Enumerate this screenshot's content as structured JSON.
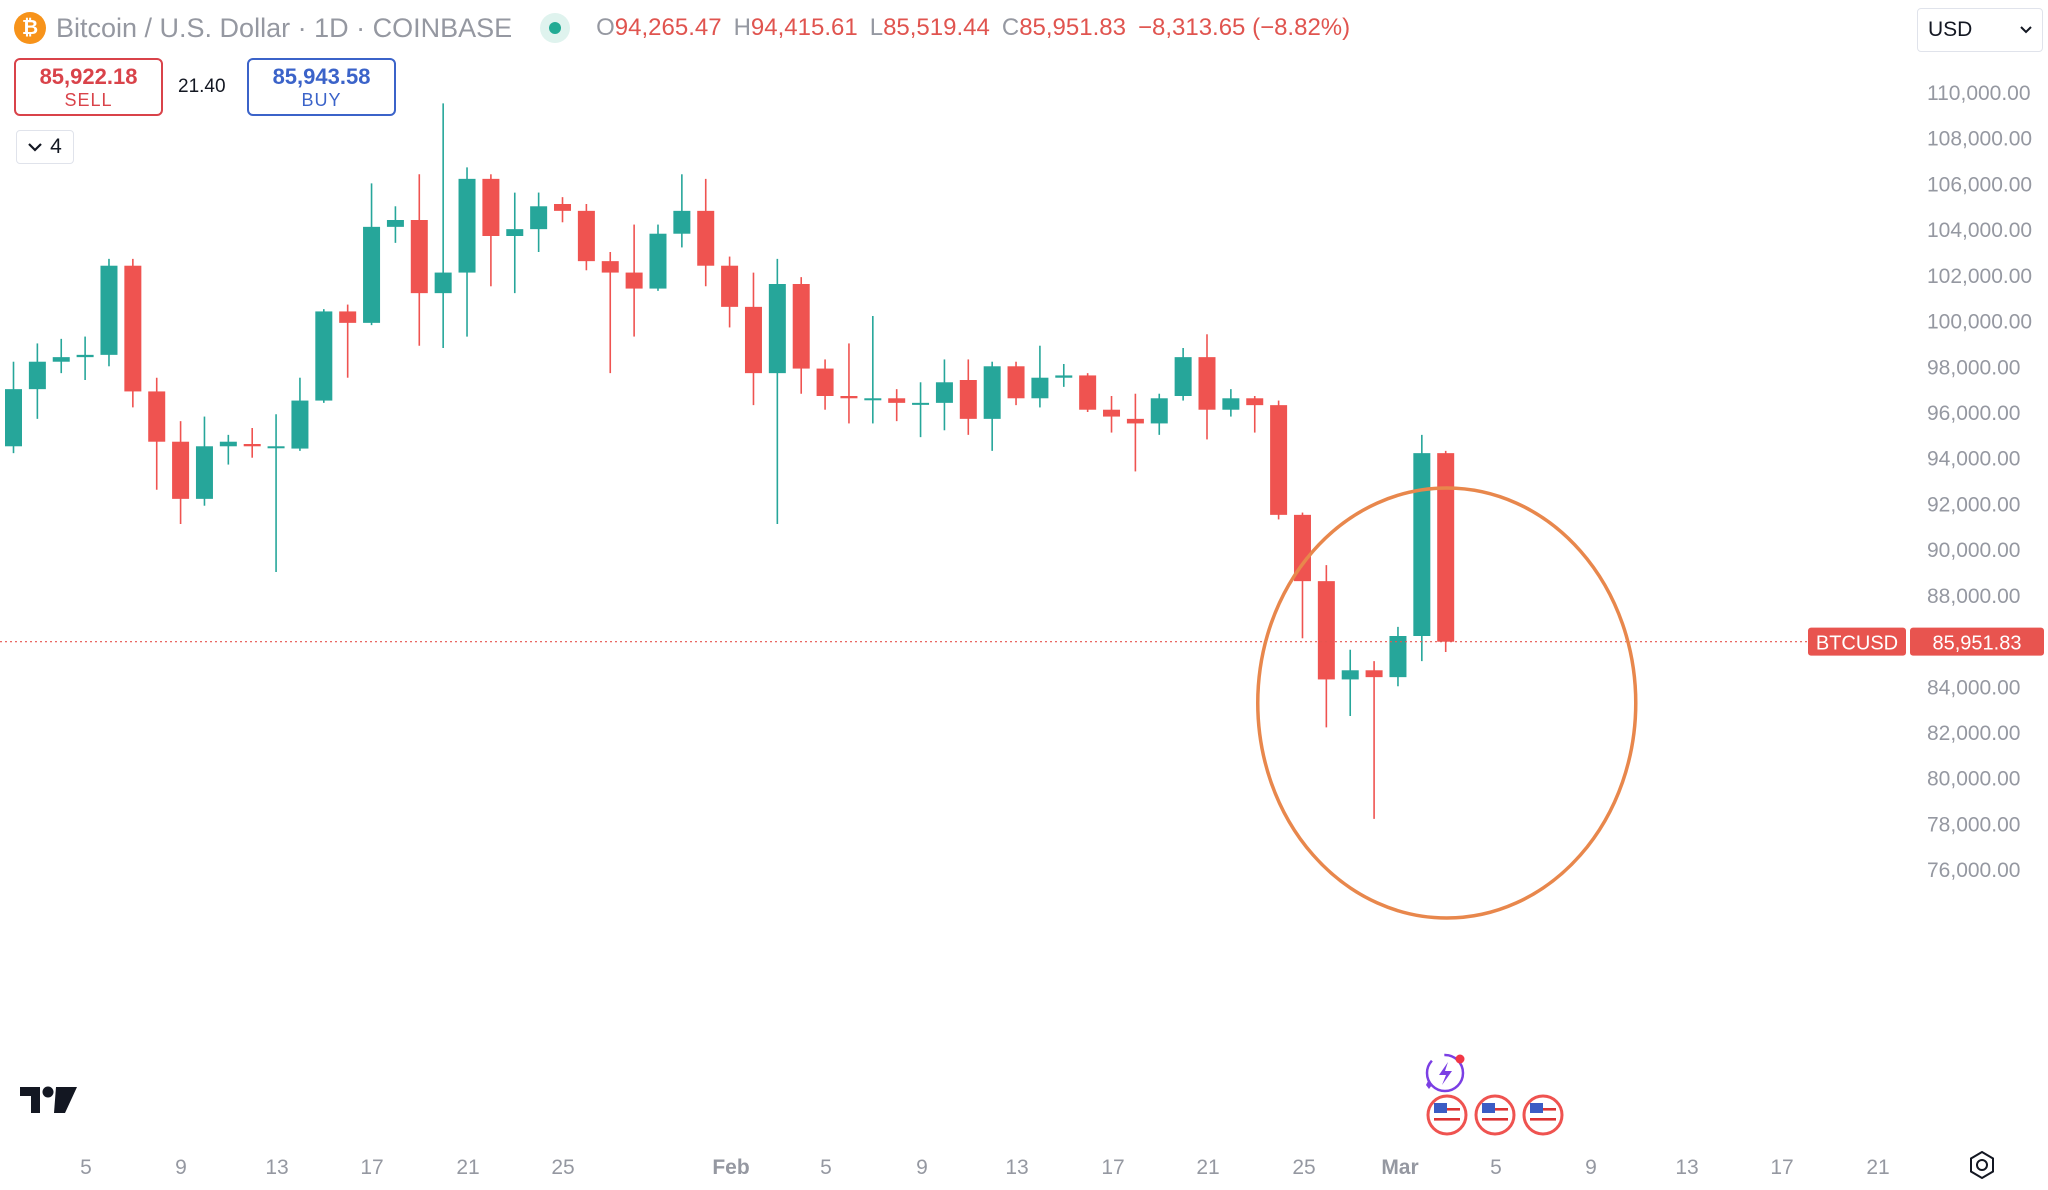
{
  "header": {
    "symbol_icon": "bitcoin-icon",
    "symbol_title": "Bitcoin / U.S. Dollar · 1D · COINBASE",
    "market_status_icon": "live-dot-icon",
    "ohlc": [
      {
        "key": "O",
        "value": "94,265.47"
      },
      {
        "key": "H",
        "value": "94,415.61"
      },
      {
        "key": "L",
        "value": "85,519.44"
      },
      {
        "key": "C",
        "value": "85,951.83"
      }
    ],
    "change": "−8,313.65 (−8.82%)"
  },
  "trade": {
    "sell_price": "85,922.18",
    "sell_label": "SELL",
    "spread": "21.40",
    "buy_price": "85,943.58",
    "buy_label": "BUY"
  },
  "indicators_toggle": {
    "icon": "chevron-down-icon",
    "count": "4"
  },
  "currency_select": {
    "value": "USD",
    "icon": "chevron-down-icon"
  },
  "logo_icon": "tradingview-logo-icon",
  "settings_icon": "gear-icon",
  "colors": {
    "up": "#26a69a",
    "down": "#ef5350",
    "accent_orange": "#e8874c",
    "price_label": "#e8544f",
    "muted_text": "#9598a1"
  },
  "chart_data": {
    "type": "candlestick",
    "symbol": "BTCUSD",
    "last_price": 85951.83,
    "last_price_label": "85,951.83",
    "last_price_tag": "BTCUSD",
    "y_axis_ticks": [
      110000,
      108000,
      106000,
      104000,
      102000,
      100000,
      98000,
      96000,
      94000,
      92000,
      90000,
      88000,
      84000,
      82000,
      80000,
      78000,
      76000
    ],
    "y_axis_labels": [
      "110,000.00",
      "108,000.00",
      "106,000.00",
      "104,000.00",
      "102,000.00",
      "100,000.00",
      "98,000.00",
      "96,000.00",
      "94,000.00",
      "92,000.00",
      "90,000.00",
      "88,000.00",
      "84,000.00",
      "82,000.00",
      "80,000.00",
      "78,000.00",
      "76,000.00"
    ],
    "x_axis_ticks": [
      {
        "label": "5",
        "bold": false
      },
      {
        "label": "9",
        "bold": false
      },
      {
        "label": "13",
        "bold": false
      },
      {
        "label": "17",
        "bold": false
      },
      {
        "label": "21",
        "bold": false
      },
      {
        "label": "25",
        "bold": false
      },
      {
        "label": "Feb",
        "bold": true
      },
      {
        "label": "5",
        "bold": false
      },
      {
        "label": "9",
        "bold": false
      },
      {
        "label": "13",
        "bold": false
      },
      {
        "label": "17",
        "bold": false
      },
      {
        "label": "21",
        "bold": false
      },
      {
        "label": "25",
        "bold": false
      },
      {
        "label": "Mar",
        "bold": true
      },
      {
        "label": "5",
        "bold": false
      },
      {
        "label": "9",
        "bold": false
      },
      {
        "label": "13",
        "bold": false
      },
      {
        "label": "17",
        "bold": false
      },
      {
        "label": "21",
        "bold": false
      }
    ],
    "ylim": [
      75200,
      111500
    ],
    "grid": false,
    "candles": [
      {
        "o": 94500,
        "h": 98200,
        "l": 94200,
        "c": 97000
      },
      {
        "o": 97000,
        "h": 99000,
        "l": 95700,
        "c": 98200
      },
      {
        "o": 98200,
        "h": 99200,
        "l": 97700,
        "c": 98400
      },
      {
        "o": 98400,
        "h": 99300,
        "l": 97400,
        "c": 98500
      },
      {
        "o": 98500,
        "h": 102700,
        "l": 98000,
        "c": 102400
      },
      {
        "o": 102400,
        "h": 102700,
        "l": 96200,
        "c": 96900
      },
      {
        "o": 96900,
        "h": 97500,
        "l": 92600,
        "c": 94700
      },
      {
        "o": 94700,
        "h": 95600,
        "l": 91100,
        "c": 92200
      },
      {
        "o": 92200,
        "h": 95800,
        "l": 91900,
        "c": 94500
      },
      {
        "o": 94500,
        "h": 95000,
        "l": 93700,
        "c": 94700
      },
      {
        "o": 94600,
        "h": 95300,
        "l": 94000,
        "c": 94500
      },
      {
        "o": 94500,
        "h": 95900,
        "l": 89000,
        "c": 94500
      },
      {
        "o": 94400,
        "h": 97500,
        "l": 94300,
        "c": 96500
      },
      {
        "o": 96500,
        "h": 100500,
        "l": 96400,
        "c": 100400
      },
      {
        "o": 100400,
        "h": 100700,
        "l": 97500,
        "c": 99900
      },
      {
        "o": 99900,
        "h": 106000,
        "l": 99800,
        "c": 104100
      },
      {
        "o": 104100,
        "h": 105000,
        "l": 103400,
        "c": 104400
      },
      {
        "o": 104400,
        "h": 106400,
        "l": 98900,
        "c": 101200
      },
      {
        "o": 101200,
        "h": 109500,
        "l": 98800,
        "c": 102100
      },
      {
        "o": 102100,
        "h": 106700,
        "l": 99300,
        "c": 106200
      },
      {
        "o": 106200,
        "h": 106400,
        "l": 101500,
        "c": 103700
      },
      {
        "o": 103700,
        "h": 105600,
        "l": 101200,
        "c": 104000
      },
      {
        "o": 104000,
        "h": 105600,
        "l": 103000,
        "c": 105000
      },
      {
        "o": 105100,
        "h": 105400,
        "l": 104300,
        "c": 104800
      },
      {
        "o": 104800,
        "h": 105100,
        "l": 102200,
        "c": 102600
      },
      {
        "o": 102600,
        "h": 103000,
        "l": 97700,
        "c": 102100
      },
      {
        "o": 102100,
        "h": 104200,
        "l": 99300,
        "c": 101400
      },
      {
        "o": 101400,
        "h": 104200,
        "l": 101300,
        "c": 103800
      },
      {
        "o": 103800,
        "h": 106400,
        "l": 103200,
        "c": 104800
      },
      {
        "o": 104800,
        "h": 106200,
        "l": 101500,
        "c": 102400
      },
      {
        "o": 102400,
        "h": 102800,
        "l": 99700,
        "c": 100600
      },
      {
        "o": 100600,
        "h": 102100,
        "l": 96300,
        "c": 97700
      },
      {
        "o": 97700,
        "h": 102700,
        "l": 91100,
        "c": 101600
      },
      {
        "o": 101600,
        "h": 101900,
        "l": 96800,
        "c": 97900
      },
      {
        "o": 97900,
        "h": 98300,
        "l": 96100,
        "c": 96700
      },
      {
        "o": 96700,
        "h": 99000,
        "l": 95500,
        "c": 96600
      },
      {
        "o": 96600,
        "h": 100200,
        "l": 95500,
        "c": 96600
      },
      {
        "o": 96600,
        "h": 97000,
        "l": 95600,
        "c": 96400
      },
      {
        "o": 96400,
        "h": 97300,
        "l": 94900,
        "c": 96400
      },
      {
        "o": 96400,
        "h": 98300,
        "l": 95200,
        "c": 97300
      },
      {
        "o": 97400,
        "h": 98300,
        "l": 95000,
        "c": 95700
      },
      {
        "o": 95700,
        "h": 98200,
        "l": 94300,
        "c": 98000
      },
      {
        "o": 98000,
        "h": 98200,
        "l": 96300,
        "c": 96600
      },
      {
        "o": 96600,
        "h": 98900,
        "l": 96200,
        "c": 97500
      },
      {
        "o": 97500,
        "h": 98100,
        "l": 97100,
        "c": 97600
      },
      {
        "o": 97600,
        "h": 97700,
        "l": 96000,
        "c": 96100
      },
      {
        "o": 96100,
        "h": 96700,
        "l": 95100,
        "c": 95800
      },
      {
        "o": 95700,
        "h": 96800,
        "l": 93400,
        "c": 95500
      },
      {
        "o": 95500,
        "h": 96800,
        "l": 95000,
        "c": 96600
      },
      {
        "o": 96700,
        "h": 98800,
        "l": 96500,
        "c": 98400
      },
      {
        "o": 98400,
        "h": 99400,
        "l": 94800,
        "c": 96100
      },
      {
        "o": 96100,
        "h": 97000,
        "l": 95800,
        "c": 96600
      },
      {
        "o": 96600,
        "h": 96700,
        "l": 95100,
        "c": 96300
      },
      {
        "o": 96300,
        "h": 96500,
        "l": 91300,
        "c": 91500
      },
      {
        "o": 91500,
        "h": 91600,
        "l": 86100,
        "c": 88600
      },
      {
        "o": 88600,
        "h": 89300,
        "l": 82200,
        "c": 84300
      },
      {
        "o": 84300,
        "h": 85600,
        "l": 82700,
        "c": 84700
      },
      {
        "o": 84700,
        "h": 85100,
        "l": 78200,
        "c": 84400
      },
      {
        "o": 84400,
        "h": 86600,
        "l": 84000,
        "c": 86200
      },
      {
        "o": 86200,
        "h": 95000,
        "l": 85100,
        "c": 94200
      },
      {
        "o": 94200,
        "h": 94300,
        "l": 85500,
        "c": 85950
      }
    ],
    "annotation": {
      "type": "ellipse",
      "around_candles": [
        59,
        60
      ],
      "color": "#e8874c"
    },
    "events": {
      "dividends_icon": "lightning-event-icon",
      "economic_event_icons": [
        "us-flag-icon",
        "us-flag-icon",
        "us-flag-icon"
      ]
    }
  }
}
